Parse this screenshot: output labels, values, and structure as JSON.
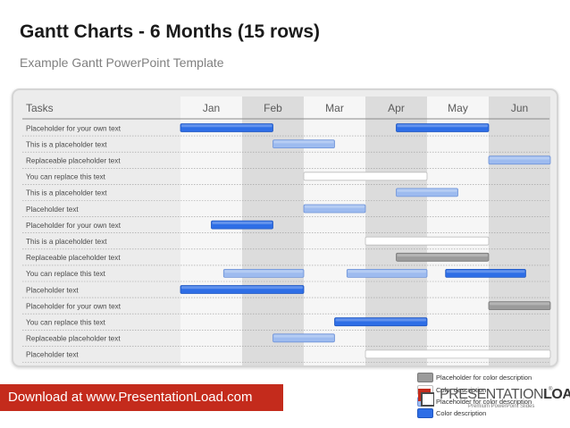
{
  "title": "Gantt Charts - 6 Months (15 rows)",
  "subtitle": "Example Gantt PowerPoint Template",
  "chart_data": {
    "type": "gantt",
    "tasks_header": "Tasks",
    "months": [
      "Jan",
      "Feb",
      "Mar",
      "Apr",
      "May",
      "Jun"
    ],
    "rows": [
      {
        "label": "Placeholder for your own text",
        "bars": [
          {
            "start": 0.0,
            "end": 1.5,
            "style": "dark"
          },
          {
            "start": 3.5,
            "end": 5.0,
            "style": "dark"
          }
        ]
      },
      {
        "label": "This is a placeholder text",
        "bars": [
          {
            "start": 1.5,
            "end": 2.5,
            "style": "light"
          }
        ]
      },
      {
        "label": "Replaceable placeholder text",
        "bars": [
          {
            "start": 5.0,
            "end": 6.0,
            "style": "light"
          }
        ]
      },
      {
        "label": "You can replace this text",
        "bars": [
          {
            "start": 2.0,
            "end": 4.0,
            "style": "white"
          }
        ]
      },
      {
        "label": "This is a placeholder text",
        "bars": [
          {
            "start": 3.5,
            "end": 4.5,
            "style": "light"
          }
        ]
      },
      {
        "label": "Placeholder text",
        "bars": [
          {
            "start": 2.0,
            "end": 3.0,
            "style": "light"
          }
        ]
      },
      {
        "label": "Placeholder for your own text",
        "bars": [
          {
            "start": 0.5,
            "end": 1.5,
            "style": "dark"
          }
        ]
      },
      {
        "label": "This is a placeholder text",
        "bars": [
          {
            "start": 3.0,
            "end": 5.0,
            "style": "white"
          }
        ]
      },
      {
        "label": "Replaceable placeholder text",
        "bars": [
          {
            "start": 3.5,
            "end": 5.0,
            "style": "gray"
          }
        ]
      },
      {
        "label": "You can replace this text",
        "bars": [
          {
            "start": 0.7,
            "end": 2.0,
            "style": "light"
          },
          {
            "start": 2.7,
            "end": 4.0,
            "style": "light"
          },
          {
            "start": 4.3,
            "end": 5.6,
            "style": "dark"
          }
        ]
      },
      {
        "label": "Placeholder text",
        "bars": [
          {
            "start": 0.0,
            "end": 2.0,
            "style": "dark"
          }
        ]
      },
      {
        "label": "Placeholder for your own text",
        "bars": [
          {
            "start": 5.0,
            "end": 6.0,
            "style": "gray"
          }
        ]
      },
      {
        "label": "You can replace this text",
        "bars": [
          {
            "start": 2.5,
            "end": 4.0,
            "style": "dark"
          }
        ]
      },
      {
        "label": "Replaceable placeholder text",
        "bars": [
          {
            "start": 1.5,
            "end": 2.5,
            "style": "light"
          }
        ]
      },
      {
        "label": "Placeholder text",
        "bars": [
          {
            "start": 3.0,
            "end": 6.0,
            "style": "white"
          }
        ]
      }
    ],
    "grid": true,
    "colors": {
      "dark": "#2e6ee6",
      "light": "#9dbbef",
      "white": "#ffffff",
      "gray": "#9b9b9b"
    }
  },
  "legend": [
    {
      "label": "Placeholder  for color description",
      "style": "gray"
    },
    {
      "label": "Color description",
      "style": "white"
    },
    {
      "label": "Placeholder for color description",
      "style": "light"
    },
    {
      "label": "Color description",
      "style": "dark"
    }
  ],
  "download_text": "Download at www.PresentationLoad.com",
  "logo": {
    "brand_part1": "PRESENTATION",
    "brand_part2": "LOAD",
    "tagline": "Premium PowerPoint Slides"
  }
}
